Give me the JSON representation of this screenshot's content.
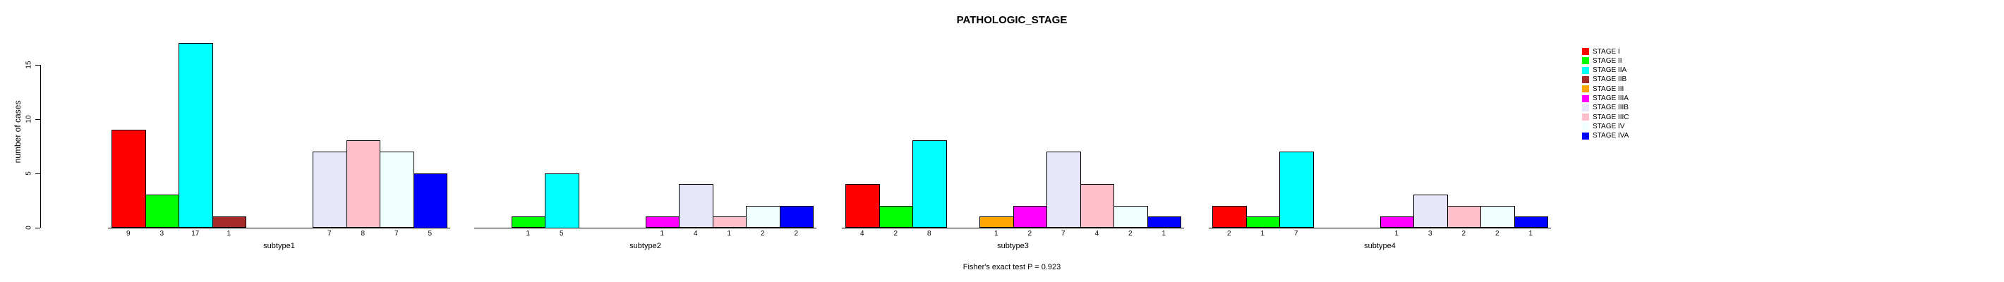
{
  "chart_data": {
    "type": "bar",
    "title": "PATHOLOGIC_STAGE",
    "ylabel": "number of cases",
    "xlabel": "",
    "annotation": "Fisher's exact test P = 0.923",
    "yticks": [
      0,
      5,
      10,
      15
    ],
    "ylim": [
      0,
      17
    ],
    "grid": false,
    "legend_position": "top-right",
    "categories": [
      "subtype1",
      "subtype2",
      "subtype3",
      "subtype4"
    ],
    "series": [
      {
        "name": "STAGE I",
        "color": "#FF0000",
        "values": [
          9,
          0,
          4,
          2
        ]
      },
      {
        "name": "STAGE II",
        "color": "#00FF00",
        "values": [
          3,
          1,
          2,
          1
        ]
      },
      {
        "name": "STAGE IIA",
        "color": "#00FFFF",
        "values": [
          17,
          5,
          8,
          7
        ]
      },
      {
        "name": "STAGE IIB",
        "color": "#A52A2A",
        "values": [
          1,
          0,
          0,
          0
        ]
      },
      {
        "name": "STAGE III",
        "color": "#FFA500",
        "values": [
          0,
          0,
          1,
          0
        ]
      },
      {
        "name": "STAGE IIIA",
        "color": "#FF00FF",
        "values": [
          0,
          1,
          2,
          1
        ]
      },
      {
        "name": "STAGE IIIB",
        "color": "#E6E6FA",
        "values": [
          7,
          4,
          7,
          3
        ]
      },
      {
        "name": "STAGE IIIC",
        "color": "#FFC0CB",
        "values": [
          8,
          1,
          4,
          2
        ]
      },
      {
        "name": "STAGE IV",
        "color": "#F0FFFF",
        "values": [
          7,
          2,
          2,
          2
        ]
      },
      {
        "name": "STAGE IVA",
        "color": "#0000FF",
        "values": [
          5,
          2,
          1,
          1
        ]
      }
    ]
  }
}
